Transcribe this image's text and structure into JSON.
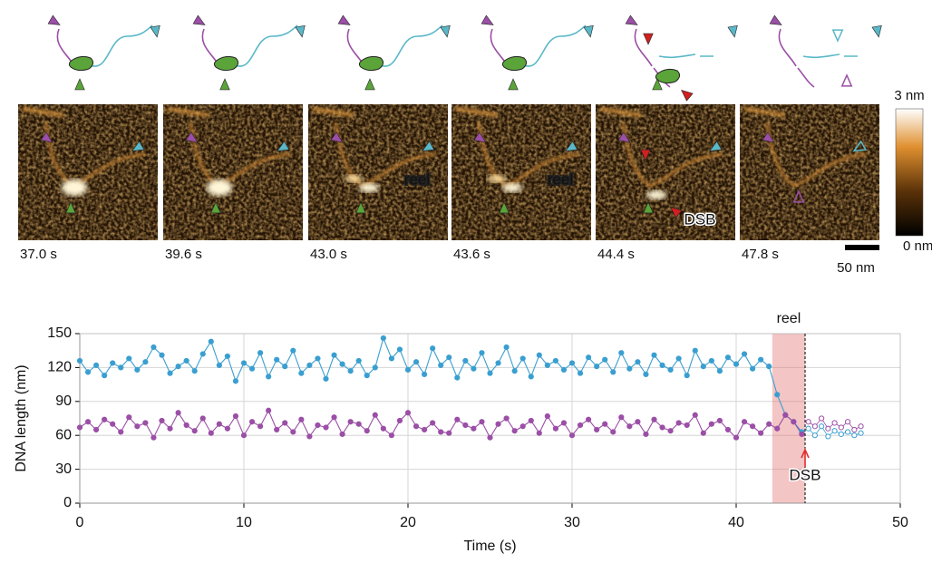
{
  "panels": [
    {
      "time": "37.0 s"
    },
    {
      "time": "39.6 s"
    },
    {
      "time": "43.0 s",
      "annotation": "reel"
    },
    {
      "time": "43.6 s",
      "annotation": "reel"
    },
    {
      "time": "44.4 s",
      "annotation": "DSB"
    },
    {
      "time": "47.8 s"
    }
  ],
  "colorbar": {
    "max_label": "3 nm",
    "min_label": "0 nm"
  },
  "scale_bar": "50 nm",
  "chart_data": {
    "type": "line",
    "x_label": "Time (s)",
    "y_label": "DNA length (nm)",
    "xlim": [
      0,
      50
    ],
    "xticks": [
      0,
      10,
      20,
      30,
      40,
      50
    ],
    "ylim": [
      0,
      150
    ],
    "yticks": [
      0,
      30,
      60,
      90,
      120,
      150
    ],
    "grid": true,
    "shaded_region": {
      "label": "reel",
      "xlim": [
        42.2,
        44.2
      ]
    },
    "marker_line": {
      "label": "DSB",
      "x": 44.2,
      "color": "#e03030"
    },
    "series": [
      {
        "color": "#3a9fd0",
        "marker": "filled",
        "x": [
          0,
          0.5,
          1,
          1.5,
          2,
          2.5,
          3,
          3.5,
          4,
          4.5,
          5,
          5.5,
          6,
          6.5,
          7,
          7.5,
          8,
          8.5,
          9,
          9.5,
          10,
          10.5,
          11,
          11.5,
          12,
          12.5,
          13,
          13.5,
          14,
          14.5,
          15,
          15.5,
          16,
          16.5,
          17,
          17.5,
          18,
          18.5,
          19,
          19.5,
          20,
          20.5,
          21,
          21.5,
          22,
          22.5,
          23,
          23.5,
          24,
          24.5,
          25,
          25.5,
          26,
          26.5,
          27,
          27.5,
          28,
          28.5,
          29,
          29.5,
          30,
          30.5,
          31,
          31.5,
          32,
          32.5,
          33,
          33.5,
          34,
          34.5,
          35,
          35.5,
          36,
          36.5,
          37,
          37.5,
          38,
          38.5,
          39,
          39.5,
          40,
          40.5,
          41,
          41.5,
          42,
          42.5,
          43,
          43.5,
          44
        ],
        "values": [
          126,
          116,
          122,
          113,
          124,
          120,
          128,
          118,
          125,
          138,
          131,
          115,
          121,
          126,
          117,
          132,
          143,
          122,
          130,
          108,
          124,
          119,
          133,
          112,
          127,
          121,
          135,
          115,
          122,
          128,
          110,
          131,
          123,
          117,
          126,
          113,
          120,
          146,
          128,
          136,
          118,
          125,
          114,
          137,
          122,
          129,
          111,
          126,
          119,
          133,
          115,
          124,
          138,
          117,
          128,
          112,
          131,
          122,
          126,
          118,
          124,
          115,
          129,
          121,
          127,
          116,
          133,
          119,
          125,
          114,
          131,
          122,
          118,
          128,
          113,
          135,
          121,
          126,
          117,
          129,
          123,
          132,
          119,
          127,
          121,
          96,
          78,
          72,
          63
        ]
      },
      {
        "color": "#9b4fa6",
        "marker": "filled",
        "x": [
          0,
          0.5,
          1,
          1.5,
          2,
          2.5,
          3,
          3.5,
          4,
          4.5,
          5,
          5.5,
          6,
          6.5,
          7,
          7.5,
          8,
          8.5,
          9,
          9.5,
          10,
          10.5,
          11,
          11.5,
          12,
          12.5,
          13,
          13.5,
          14,
          14.5,
          15,
          15.5,
          16,
          16.5,
          17,
          17.5,
          18,
          18.5,
          19,
          19.5,
          20,
          20.5,
          21,
          21.5,
          22,
          22.5,
          23,
          23.5,
          24,
          24.5,
          25,
          25.5,
          26,
          26.5,
          27,
          27.5,
          28,
          28.5,
          29,
          29.5,
          30,
          30.5,
          31,
          31.5,
          32,
          32.5,
          33,
          33.5,
          34,
          34.5,
          35,
          35.5,
          36,
          36.5,
          37,
          37.5,
          38,
          38.5,
          39,
          39.5,
          40,
          40.5,
          41,
          41.5,
          42,
          42.5,
          43,
          43.5,
          44
        ],
        "values": [
          67,
          72,
          65,
          74,
          70,
          63,
          76,
          68,
          71,
          58,
          73,
          66,
          80,
          69,
          64,
          75,
          62,
          70,
          66,
          77,
          60,
          72,
          68,
          82,
          65,
          71,
          63,
          74,
          59,
          69,
          67,
          76,
          61,
          72,
          70,
          64,
          78,
          66,
          60,
          73,
          80,
          68,
          65,
          71,
          63,
          62,
          74,
          69,
          66,
          72,
          58,
          70,
          75,
          64,
          68,
          73,
          62,
          77,
          66,
          71,
          60,
          69,
          74,
          65,
          70,
          63,
          76,
          68,
          72,
          61,
          74,
          67,
          64,
          71,
          69,
          78,
          62,
          70,
          73,
          65,
          58,
          72,
          68,
          62,
          70,
          66,
          78,
          72,
          61
        ]
      },
      {
        "color": "#3a9fd0",
        "marker": "open",
        "x": [
          44.4,
          44.8,
          45.2,
          45.6,
          46,
          46.4,
          46.8,
          47.2,
          47.6
        ],
        "values": [
          66,
          60,
          68,
          59,
          64,
          61,
          63,
          60,
          62
        ]
      },
      {
        "color": "#9b4fa6",
        "marker": "open",
        "x": [
          44.4,
          44.8,
          45.2,
          45.6,
          46,
          46.4,
          46.8,
          47.2,
          47.6
        ],
        "values": [
          72,
          68,
          75,
          66,
          71,
          67,
          72,
          65,
          68
        ]
      }
    ]
  }
}
